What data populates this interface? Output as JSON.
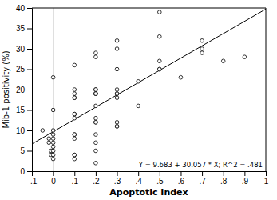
{
  "chart_data": {
    "type": "scatter",
    "xlabel": "Apoptotic Index",
    "ylabel": "Mib-1 positivity (%)",
    "annotation": "Y = 9.683 + 30.057 * X; R^2 = .481",
    "xlim": [
      -0.1,
      1.0
    ],
    "ylim": [
      0,
      40
    ],
    "xticks": [
      {
        "value": -0.1,
        "label": "-.1"
      },
      0,
      {
        "value": 0.1,
        "label": ".1"
      },
      {
        "value": 0.2,
        "label": ".2"
      },
      {
        "value": 0.3,
        "label": ".3"
      },
      {
        "value": 0.4,
        "label": ".4"
      },
      {
        "value": 0.5,
        "label": ".5"
      },
      {
        "value": 0.6,
        "label": ".6"
      },
      {
        "value": 0.7,
        "label": ".7"
      },
      {
        "value": 0.8,
        "label": ".8"
      },
      {
        "value": 0.9,
        "label": ".9"
      },
      1
    ],
    "yticks": [
      0,
      5,
      10,
      15,
      20,
      25,
      30,
      35,
      40
    ],
    "grid": false,
    "series": [
      {
        "type": "scatter",
        "marker": "open-circle",
        "color": "black",
        "x": [
          -0.05,
          -0.02,
          -0.02,
          -0.01,
          -0.01,
          0.0,
          0.0,
          0.0,
          0.0,
          0.0,
          0.0,
          0.0,
          0.0,
          0.0,
          0.0,
          0.1,
          0.1,
          0.1,
          0.1,
          0.1,
          0.1,
          0.1,
          0.1,
          0.1,
          0.1,
          0.1,
          0.1,
          0.1,
          0.1,
          0.2,
          0.2,
          0.2,
          0.2,
          0.2,
          0.2,
          0.2,
          0.2,
          0.2,
          0.2,
          0.2,
          0.2,
          0.2,
          0.2,
          0.2,
          0.3,
          0.3,
          0.3,
          0.3,
          0.3,
          0.3,
          0.3,
          0.3,
          0.3,
          0.3,
          0.4,
          0.4,
          0.5,
          0.5,
          0.5,
          0.5,
          0.5,
          0.6,
          0.7,
          0.7,
          0.7,
          0.8,
          0.9
        ],
        "values": [
          10,
          8,
          7,
          5,
          4,
          23,
          15,
          10,
          9,
          8,
          7,
          6,
          5,
          4,
          3,
          26,
          20,
          19,
          18,
          18,
          14,
          14,
          13,
          9,
          9,
          8,
          4,
          4,
          3,
          29,
          28,
          20,
          20,
          19,
          19,
          19,
          16,
          13,
          12,
          12,
          9,
          7,
          5,
          2,
          32,
          30,
          25,
          20,
          19,
          19,
          18,
          12,
          11,
          11,
          22,
          16,
          39,
          33,
          27,
          25,
          25,
          23,
          32,
          30,
          29,
          27,
          28
        ]
      },
      {
        "type": "line",
        "color": "black",
        "x": [
          -0.1,
          1.0
        ],
        "values": [
          6.6773,
          39.74
        ]
      },
      {
        "type": "line",
        "color": "black",
        "x": [
          0.0,
          0.0
        ],
        "values": [
          0,
          40
        ]
      }
    ]
  }
}
